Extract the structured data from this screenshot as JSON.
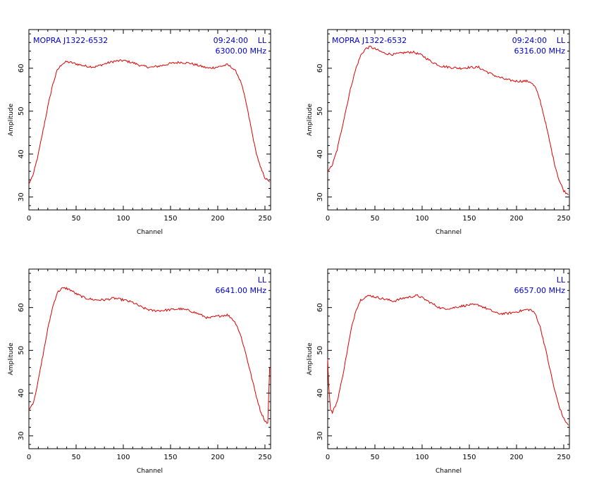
{
  "colors": {
    "trace": "#dd0000",
    "annotation": "#0000cc",
    "axis": "#000000",
    "background": "#ffffff"
  },
  "chart_data": [
    {
      "type": "line",
      "title": "",
      "xlabel": "Channel",
      "ylabel": "Amplitude",
      "xlim": [
        0,
        256
      ],
      "ylim": [
        27,
        69
      ],
      "xticks": [
        "0",
        "50",
        "100",
        "150",
        "200",
        "250"
      ],
      "yticks": [
        "30",
        "40",
        "50",
        "60"
      ],
      "grid": false,
      "source_label": "MOPRA J1322-6532",
      "time_label": "09:24:00",
      "pol_label": "LL",
      "freq_label": "6300.00 MHz",
      "series": [
        {
          "x": [
            0,
            5,
            10,
            15,
            20,
            25,
            30,
            35,
            40,
            45,
            50,
            60,
            70,
            80,
            90,
            100,
            110,
            120,
            130,
            140,
            150,
            160,
            170,
            180,
            190,
            200,
            210,
            215,
            220,
            225,
            230,
            235,
            240,
            245,
            250,
            255
          ],
          "y": [
            33,
            35.5,
            40,
            45.5,
            51,
            56,
            59.5,
            61,
            61.5,
            61.3,
            61,
            60.5,
            60.3,
            61,
            61.6,
            61.8,
            61.3,
            60.5,
            60.2,
            60.6,
            61.1,
            61.4,
            61.2,
            60.6,
            60,
            60.3,
            60.8,
            60.2,
            59,
            56.5,
            52,
            46.5,
            41,
            37,
            34.5,
            33.5
          ]
        }
      ]
    },
    {
      "type": "line",
      "title": "",
      "xlabel": "Channel",
      "ylabel": "Amplitude",
      "xlim": [
        0,
        256
      ],
      "ylim": [
        27,
        69
      ],
      "xticks": [
        "0",
        "50",
        "100",
        "150",
        "200",
        "250"
      ],
      "yticks": [
        "30",
        "40",
        "50",
        "60"
      ],
      "grid": false,
      "source_label": "MOPRA J1322-6532",
      "time_label": "09:24:00",
      "pol_label": "LL",
      "freq_label": "6316.00 MHz",
      "series": [
        {
          "x": [
            0,
            5,
            10,
            15,
            20,
            25,
            30,
            35,
            40,
            45,
            50,
            55,
            60,
            70,
            80,
            90,
            100,
            110,
            120,
            130,
            140,
            150,
            160,
            170,
            180,
            190,
            200,
            210,
            215,
            220,
            225,
            230,
            235,
            240,
            245,
            250,
            255
          ],
          "y": [
            36,
            37.5,
            41,
            46,
            51,
            56,
            60,
            63,
            64.5,
            65,
            64.5,
            64,
            63.5,
            63.2,
            63.6,
            63.8,
            63,
            61.5,
            60.5,
            60.2,
            60,
            60.2,
            60.2,
            59,
            58,
            57.3,
            57,
            57,
            56.8,
            55.5,
            52.5,
            48,
            43,
            38,
            34,
            31.5,
            30.5
          ]
        }
      ]
    },
    {
      "type": "line",
      "title": "",
      "xlabel": "Channel",
      "ylabel": "Amplitude",
      "xlim": [
        0,
        256
      ],
      "ylim": [
        27,
        69
      ],
      "xticks": [
        "0",
        "50",
        "100",
        "150",
        "200",
        "250"
      ],
      "yticks": [
        "30",
        "40",
        "50",
        "60"
      ],
      "grid": false,
      "source_label": "",
      "time_label": "",
      "pol_label": "LL",
      "freq_label": "6641.00 MHz",
      "series": [
        {
          "x": [
            0,
            5,
            10,
            15,
            20,
            25,
            30,
            35,
            40,
            45,
            50,
            60,
            70,
            80,
            90,
            100,
            110,
            120,
            130,
            140,
            150,
            160,
            170,
            180,
            190,
            200,
            210,
            215,
            220,
            225,
            230,
            235,
            240,
            245,
            250,
            253,
            255
          ],
          "y": [
            36,
            38,
            43,
            49,
            55,
            60,
            63.5,
            64.5,
            64.5,
            64,
            63.2,
            62.2,
            61.8,
            61.8,
            62.2,
            61.8,
            61.2,
            60,
            59.3,
            59.3,
            59.5,
            59.7,
            59.3,
            58.5,
            57.5,
            58,
            58.3,
            57.5,
            56,
            53,
            49,
            44.5,
            40,
            36,
            33.5,
            33,
            46
          ]
        }
      ]
    },
    {
      "type": "line",
      "title": "",
      "xlabel": "Channel",
      "ylabel": "Amplitude",
      "xlim": [
        0,
        256
      ],
      "ylim": [
        27,
        69
      ],
      "xticks": [
        "0",
        "50",
        "100",
        "150",
        "200",
        "250"
      ],
      "yticks": [
        "30",
        "40",
        "50",
        "60"
      ],
      "grid": false,
      "source_label": "",
      "time_label": "",
      "pol_label": "LL",
      "freq_label": "6657.00 MHz",
      "series": [
        {
          "x": [
            0,
            1,
            3,
            5,
            10,
            15,
            20,
            25,
            30,
            35,
            40,
            45,
            50,
            60,
            70,
            80,
            90,
            95,
            100,
            110,
            120,
            130,
            140,
            150,
            160,
            170,
            180,
            190,
            200,
            210,
            215,
            220,
            225,
            230,
            235,
            240,
            245,
            250,
            255
          ],
          "y": [
            48,
            42,
            36,
            35.5,
            38,
            43,
            49,
            55,
            59.5,
            61.8,
            62.5,
            62.8,
            62.5,
            62,
            61.5,
            62.2,
            62.6,
            62.8,
            62.3,
            61,
            59.8,
            59.8,
            60.3,
            60.6,
            60.6,
            59.6,
            58.6,
            58.6,
            59,
            59.5,
            59.5,
            58.5,
            55.5,
            51,
            46,
            41,
            37,
            34,
            32.5
          ]
        }
      ]
    }
  ]
}
